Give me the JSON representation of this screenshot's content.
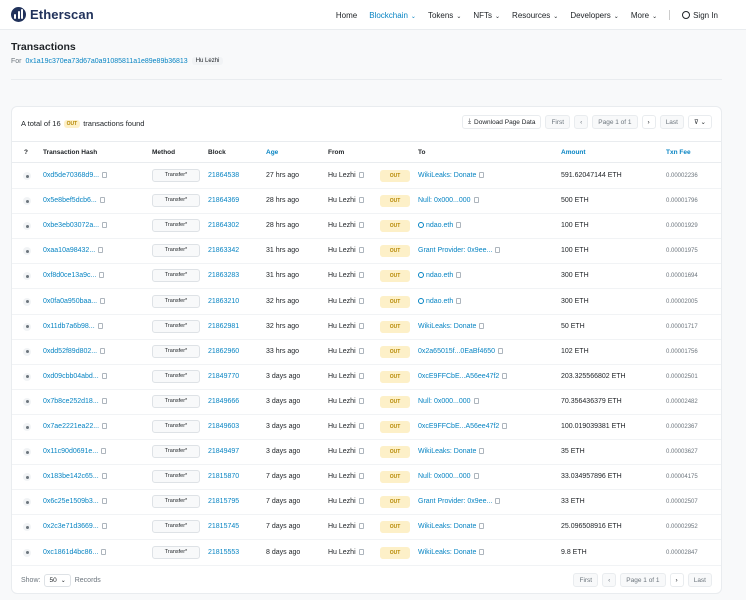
{
  "brand": {
    "name": "Etherscan"
  },
  "nav": {
    "home": "Home",
    "blockchain": "Blockchain",
    "tokens": "Tokens",
    "nfts": "NFTs",
    "resources": "Resources",
    "developers": "Developers",
    "more": "More",
    "signin": "Sign In",
    "chevron": "⌄"
  },
  "page": {
    "title": "Transactions",
    "for_label": "For",
    "address": "0x1a19c370ea73d67a0a91085811a1e89e89b36813",
    "address_tag": "Hu Lezhi"
  },
  "card": {
    "found_prefix": "A total of 16",
    "found_badge": "OUT",
    "found_suffix": "transactions found",
    "download": "Download Page Data",
    "filter_icon": "⊽ ⌄"
  },
  "pager": {
    "first": "First",
    "prev": "‹",
    "page": "Page 1 of 1",
    "next": "›",
    "last": "Last"
  },
  "columns": {
    "info": "?",
    "hash": "Transaction Hash",
    "method": "Method",
    "block": "Block",
    "age": "Age",
    "from": "From",
    "to": "To",
    "amount": "Amount",
    "fee": "Txn Fee"
  },
  "rows": [
    {
      "hash": "0xd5de70368d9...",
      "method": "Transfer*",
      "block": "21864538",
      "age": "27 hrs ago",
      "from": "Hu Lezhi",
      "dir": "OUT",
      "to": "WikiLeaks: Donate",
      "to_ens": false,
      "amount": "591.62047144 ETH",
      "fee": "0.00002236"
    },
    {
      "hash": "0x5e8bef5dcb6...",
      "method": "Transfer*",
      "block": "21864369",
      "age": "28 hrs ago",
      "from": "Hu Lezhi",
      "dir": "OUT",
      "to": "Null: 0x000...000",
      "to_ens": false,
      "amount": "500 ETH",
      "fee": "0.00001796"
    },
    {
      "hash": "0xbe3eb03072a...",
      "method": "Transfer*",
      "block": "21864302",
      "age": "28 hrs ago",
      "from": "Hu Lezhi",
      "dir": "OUT",
      "to": "ndao.eth",
      "to_ens": true,
      "amount": "100 ETH",
      "fee": "0.00001929"
    },
    {
      "hash": "0xaa10a98432...",
      "method": "Transfer*",
      "block": "21863342",
      "age": "31 hrs ago",
      "from": "Hu Lezhi",
      "dir": "OUT",
      "to": "Grant Provider: 0x9ee...",
      "to_ens": false,
      "amount": "100 ETH",
      "fee": "0.00001975"
    },
    {
      "hash": "0xf8d0ce13a9c...",
      "method": "Transfer*",
      "block": "21863283",
      "age": "31 hrs ago",
      "from": "Hu Lezhi",
      "dir": "OUT",
      "to": "ndao.eth",
      "to_ens": true,
      "amount": "300 ETH",
      "fee": "0.00001694"
    },
    {
      "hash": "0x0fa0a950baa...",
      "method": "Transfer*",
      "block": "21863210",
      "age": "32 hrs ago",
      "from": "Hu Lezhi",
      "dir": "OUT",
      "to": "ndao.eth",
      "to_ens": true,
      "amount": "300 ETH",
      "fee": "0.00002005"
    },
    {
      "hash": "0x11db7a6b98...",
      "method": "Transfer*",
      "block": "21862981",
      "age": "32 hrs ago",
      "from": "Hu Lezhi",
      "dir": "OUT",
      "to": "WikiLeaks: Donate",
      "to_ens": false,
      "amount": "50 ETH",
      "fee": "0.00001717"
    },
    {
      "hash": "0xdd52f89d802...",
      "method": "Transfer*",
      "block": "21862960",
      "age": "33 hrs ago",
      "from": "Hu Lezhi",
      "dir": "OUT",
      "to": "0x2a65015f...0EaBf4650",
      "to_ens": false,
      "amount": "102 ETH",
      "fee": "0.00001756"
    },
    {
      "hash": "0xd09cbb04abd...",
      "method": "Transfer*",
      "block": "21849770",
      "age": "3 days ago",
      "from": "Hu Lezhi",
      "dir": "OUT",
      "to": "0xcE9FFCbE...A56ee47f2",
      "to_ens": false,
      "amount": "203.325566802 ETH",
      "fee": "0.00002501"
    },
    {
      "hash": "0x7b8ce252d18...",
      "method": "Transfer*",
      "block": "21849666",
      "age": "3 days ago",
      "from": "Hu Lezhi",
      "dir": "OUT",
      "to": "Null: 0x000...000",
      "to_ens": false,
      "amount": "70.356436379 ETH",
      "fee": "0.00002482"
    },
    {
      "hash": "0x7ae2221ea22...",
      "method": "Transfer*",
      "block": "21849603",
      "age": "3 days ago",
      "from": "Hu Lezhi",
      "dir": "OUT",
      "to": "0xcE9FFCbE...A56ee47f2",
      "to_ens": false,
      "amount": "100.019039381 ETH",
      "fee": "0.00002367"
    },
    {
      "hash": "0x11c90d0691e...",
      "method": "Transfer*",
      "block": "21849497",
      "age": "3 days ago",
      "from": "Hu Lezhi",
      "dir": "OUT",
      "to": "WikiLeaks: Donate",
      "to_ens": false,
      "amount": "35 ETH",
      "fee": "0.00003627"
    },
    {
      "hash": "0x183be142c65...",
      "method": "Transfer*",
      "block": "21815870",
      "age": "7 days ago",
      "from": "Hu Lezhi",
      "dir": "OUT",
      "to": "Null: 0x000...000",
      "to_ens": false,
      "amount": "33.034957896 ETH",
      "fee": "0.00004175"
    },
    {
      "hash": "0x6c25e1509b3...",
      "method": "Transfer*",
      "block": "21815795",
      "age": "7 days ago",
      "from": "Hu Lezhi",
      "dir": "OUT",
      "to": "Grant Provider: 0x9ee...",
      "to_ens": false,
      "amount": "33 ETH",
      "fee": "0.00002507"
    },
    {
      "hash": "0x2c3e71d3669...",
      "method": "Transfer*",
      "block": "21815745",
      "age": "7 days ago",
      "from": "Hu Lezhi",
      "dir": "OUT",
      "to": "WikiLeaks: Donate",
      "to_ens": false,
      "amount": "25.096508916 ETH",
      "fee": "0.00002952"
    },
    {
      "hash": "0xc1861d4bc86...",
      "method": "Transfer*",
      "block": "21815553",
      "age": "8 days ago",
      "from": "Hu Lezhi",
      "dir": "OUT",
      "to": "WikiLeaks: Donate",
      "to_ens": false,
      "amount": "9.8 ETH",
      "fee": "0.00002847"
    }
  ],
  "footer": {
    "show_label": "Show:",
    "page_size": "50",
    "page_size_chev": "⌄",
    "records_label": "Records"
  }
}
